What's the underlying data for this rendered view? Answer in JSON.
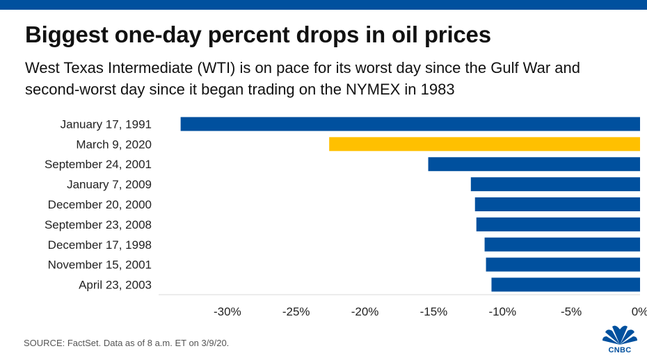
{
  "colors": {
    "accent": "#00509e",
    "highlight": "#ffc000",
    "grid": "#d9d9d9"
  },
  "title": "Biggest one-day percent drops in oil prices",
  "subtitle": "West Texas Intermediate (WTI) is on pace for its worst day since the Gulf War and second-worst day since it began trading on the NYMEX in 1983",
  "source": "SOURCE: FactSet. Data as of 8 a.m. ET on 3/9/20.",
  "logo": {
    "text": "CNBC",
    "icon": "peacock-icon"
  },
  "chart_data": {
    "type": "bar",
    "orientation": "horizontal",
    "title": "Biggest one-day percent drops in oil prices",
    "xlabel": "",
    "ylabel": "",
    "categories": [
      "January 17, 1991",
      "March 9, 2020",
      "September 24, 2001",
      "January 7, 2009",
      "December 20, 2000",
      "September 23, 2008",
      "December 17, 1998",
      "November 15, 2001",
      "April 23, 2003"
    ],
    "values": [
      -33.4,
      -22.6,
      -15.4,
      -12.3,
      -12.0,
      -11.9,
      -11.3,
      -11.2,
      -10.8
    ],
    "highlight_index": 1,
    "xlim": [
      -35,
      0
    ],
    "xticks": [
      -30,
      -25,
      -20,
      -15,
      -10,
      -5,
      0
    ],
    "xtick_labels": [
      "-30%",
      "-25%",
      "-20%",
      "-15%",
      "-10%",
      "-5%",
      "0%"
    ],
    "grid": true
  }
}
